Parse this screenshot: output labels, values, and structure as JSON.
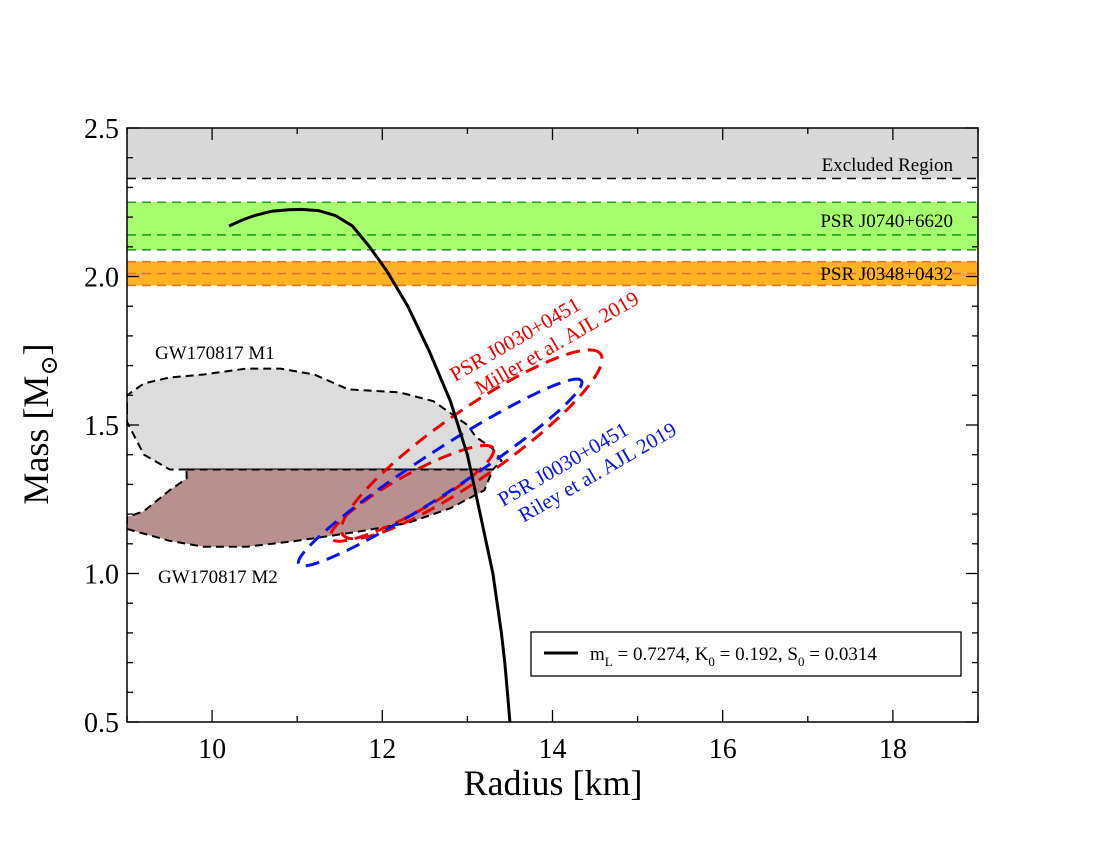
{
  "chart_data": {
    "type": "line",
    "xlabel": "Radius [km]",
    "ylabel": "Mass [M",
    "ylabel_sub": "⊙",
    "ylabel_close": "]",
    "xlim": [
      9,
      19
    ],
    "ylim": [
      0.5,
      2.5
    ],
    "xticks": [
      10,
      12,
      14,
      16,
      18
    ],
    "yticks": [
      0.5,
      1.0,
      1.5,
      2.0,
      2.5
    ],
    "xtick_labels": [
      "10",
      "12",
      "14",
      "16",
      "18"
    ],
    "ytick_labels": [
      "0.5",
      "1.0",
      "1.5",
      "2.0",
      "2.5"
    ],
    "grid": false,
    "colors": {
      "excluded_fill": "#d9d9d9",
      "green_fill": "#a6ff6e",
      "green_line": "#22a022",
      "orange_fill": "#ffb224",
      "orange_line": "#e0752a",
      "m1_fill": "#dcdcdc",
      "m2_fill": "#b89090",
      "red": "#ee0000",
      "blue": "#0a14e6",
      "black": "#000000"
    },
    "bands": [
      {
        "name": "Excluded Region",
        "label": "Excluded Region",
        "y_low": 2.33,
        "y_high": 2.5,
        "dashed_lines": [
          2.33
        ]
      },
      {
        "name": "PSR J0740+6620",
        "label": "PSR J0740+6620",
        "y_low": 2.09,
        "y_high": 2.25,
        "dashed_lines": [
          2.25,
          2.14,
          2.09
        ]
      },
      {
        "name": "PSR J0348+0432",
        "label": "PSR J0348+0432",
        "y_low": 1.97,
        "y_high": 2.05,
        "dashed_lines": [
          2.05,
          2.01,
          1.97
        ]
      }
    ],
    "gw_regions": [
      {
        "name": "GW170817 M1",
        "label": "GW170817 M1",
        "points": [
          [
            9.0,
            1.55
          ],
          [
            9.0,
            1.6
          ],
          [
            9.2,
            1.64
          ],
          [
            9.5,
            1.66
          ],
          [
            9.9,
            1.67
          ],
          [
            10.4,
            1.69
          ],
          [
            10.8,
            1.69
          ],
          [
            11.2,
            1.67
          ],
          [
            11.6,
            1.62
          ],
          [
            12.2,
            1.61
          ],
          [
            12.6,
            1.58
          ],
          [
            13.0,
            1.5
          ],
          [
            13.1,
            1.46
          ],
          [
            13.3,
            1.42
          ],
          [
            13.4,
            1.38
          ],
          [
            13.3,
            1.35
          ],
          [
            9.7,
            1.35
          ],
          [
            9.5,
            1.35
          ],
          [
            9.2,
            1.4
          ],
          [
            9.0,
            1.51
          ]
        ]
      },
      {
        "name": "GW170817 M2",
        "label": "GW170817 M2",
        "points": [
          [
            9.7,
            1.35
          ],
          [
            13.3,
            1.35
          ],
          [
            13.2,
            1.28
          ],
          [
            12.8,
            1.22
          ],
          [
            12.3,
            1.17
          ],
          [
            11.7,
            1.14
          ],
          [
            11.0,
            1.11
          ],
          [
            10.4,
            1.09
          ],
          [
            9.9,
            1.09
          ],
          [
            9.5,
            1.11
          ],
          [
            9.0,
            1.15
          ],
          [
            9.0,
            1.19
          ],
          [
            9.2,
            1.21
          ],
          [
            9.5,
            1.28
          ],
          [
            9.7,
            1.32
          ]
        ]
      }
    ],
    "psr_j0030_contours": [
      {
        "name": "PSR J0030+0451 Miller",
        "label_line1": "PSR J0030+0451",
        "label_line2": "Miller et al. AJL 2019",
        "outer": {
          "center": [
            13.05,
            1.435
          ],
          "semi_major_km": 1.85,
          "semi_minor_km": 0.395,
          "angle_deg": 35.0
        },
        "inner": {
          "center": [
            12.35,
            1.27
          ],
          "semi_major_km": 1.09,
          "semi_minor_km": 0.22,
          "angle_deg": 29.0
        }
      },
      {
        "name": "PSR J0030+0451 Riley",
        "label_line1": "PSR J0030+0451",
        "label_line2": "Riley et al. AJL 2019",
        "outer": {
          "center": [
            12.68,
            1.34
          ],
          "semi_major_km": 1.98,
          "semi_minor_km": 0.245,
          "angle_deg": 33.0
        }
      }
    ],
    "series": [
      {
        "name": "mL = 0.7274, K0 = 0.192, S0 = 0.0314",
        "x": [
          10.2,
          10.35,
          10.5,
          10.7,
          10.9,
          11.05,
          11.25,
          11.45,
          11.65,
          11.85,
          12.05,
          12.3,
          12.55,
          12.8,
          13.0,
          13.15,
          13.3,
          13.4,
          13.44,
          13.47,
          13.5
        ],
        "y": [
          2.17,
          2.19,
          2.205,
          2.22,
          2.225,
          2.226,
          2.222,
          2.205,
          2.17,
          2.1,
          2.02,
          1.9,
          1.75,
          1.58,
          1.4,
          1.2,
          1.0,
          0.8,
          0.7,
          0.6,
          0.5
        ]
      }
    ],
    "legend": {
      "position": "lower-right",
      "label_m": "m",
      "label_m_sub": "L",
      "label_eq1": " = 0.7274, K",
      "label_k_sub": "0",
      "label_eq2": " = 0.192, S",
      "label_s_sub": "0",
      "label_eq3": " = 0.0314"
    }
  }
}
